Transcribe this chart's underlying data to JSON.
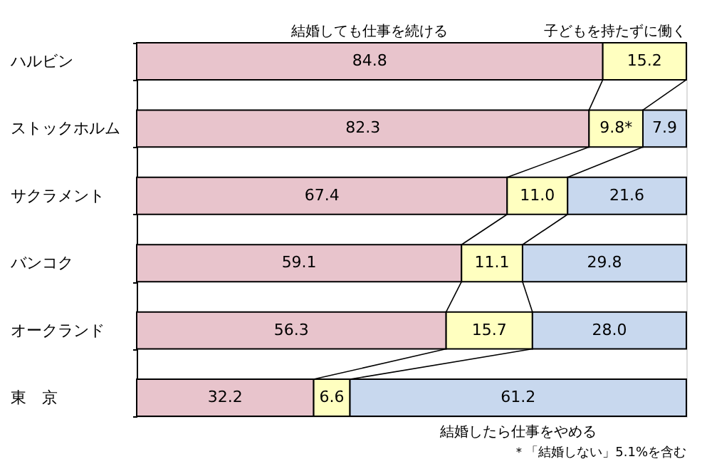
{
  "chart_data": {
    "type": "bar",
    "orientation": "horizontal",
    "stacked": true,
    "tick_labels": "y",
    "categories": [
      "ハルビン",
      "ストックホルム",
      "サクラメント",
      "バンコク",
      "オークランド",
      "東　京"
    ],
    "series": [
      {
        "name": "結婚しても仕事を続ける",
        "color": "#e8c4cc",
        "values": [
          84.8,
          82.3,
          67.4,
          59.1,
          56.3,
          32.2
        ],
        "value_labels": [
          "84.8",
          "82.3",
          "67.4",
          "59.1",
          "56.3",
          "32.2"
        ]
      },
      {
        "name": "子どもを持たずに働く",
        "color": "#ffffc0",
        "values": [
          15.2,
          9.8,
          11.0,
          11.1,
          15.7,
          6.6
        ],
        "value_labels": [
          "15.2",
          "9.8*",
          "11.0",
          "11.1",
          "15.7",
          "6.6"
        ]
      },
      {
        "name": "結婚したら仕事をやめる",
        "color": "#c8d8ee",
        "values": [
          0,
          7.9,
          21.6,
          29.8,
          28.0,
          61.2
        ],
        "value_labels": [
          null,
          "7.9",
          "21.6",
          "29.8",
          "28.0",
          "61.2"
        ]
      }
    ],
    "annotations": [
      "＊「結婚しない」5.1%を含む"
    ]
  }
}
